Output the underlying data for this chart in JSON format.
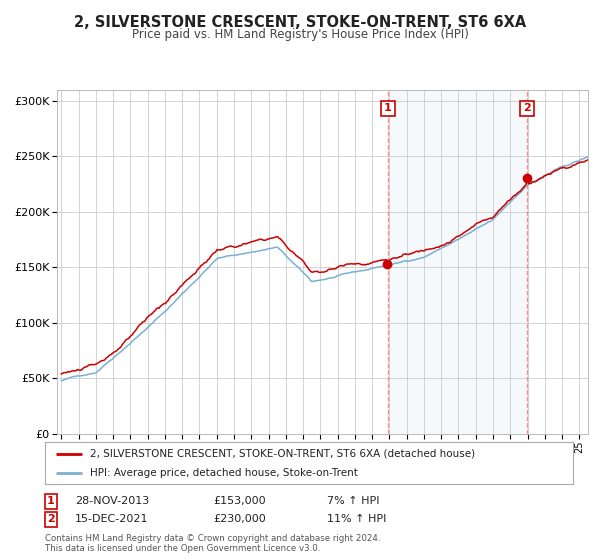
{
  "title": "2, SILVERSTONE CRESCENT, STOKE-ON-TRENT, ST6 6XA",
  "subtitle": "Price paid vs. HM Land Registry's House Price Index (HPI)",
  "title_fontsize": 10.5,
  "subtitle_fontsize": 8.5,
  "background_color": "#ffffff",
  "plot_bg_color": "#ffffff",
  "grid_color": "#cccccc",
  "hpi_line_color": "#7ab0d4",
  "price_line_color": "#cc0000",
  "sale1_date_num": 2013.91,
  "sale1_price": 153000,
  "sale2_date_num": 2021.96,
  "sale2_price": 230000,
  "legend_line1": "2, SILVERSTONE CRESCENT, STOKE-ON-TRENT, ST6 6XA (detached house)",
  "legend_line2": "HPI: Average price, detached house, Stoke-on-Trent",
  "footer": "Contains HM Land Registry data © Crown copyright and database right 2024.\nThis data is licensed under the Open Government Licence v3.0.",
  "ylim": [
    0,
    310000
  ],
  "yticks": [
    0,
    50000,
    100000,
    150000,
    200000,
    250000,
    300000
  ],
  "xlim_start": 1994.75,
  "xlim_end": 2025.5
}
